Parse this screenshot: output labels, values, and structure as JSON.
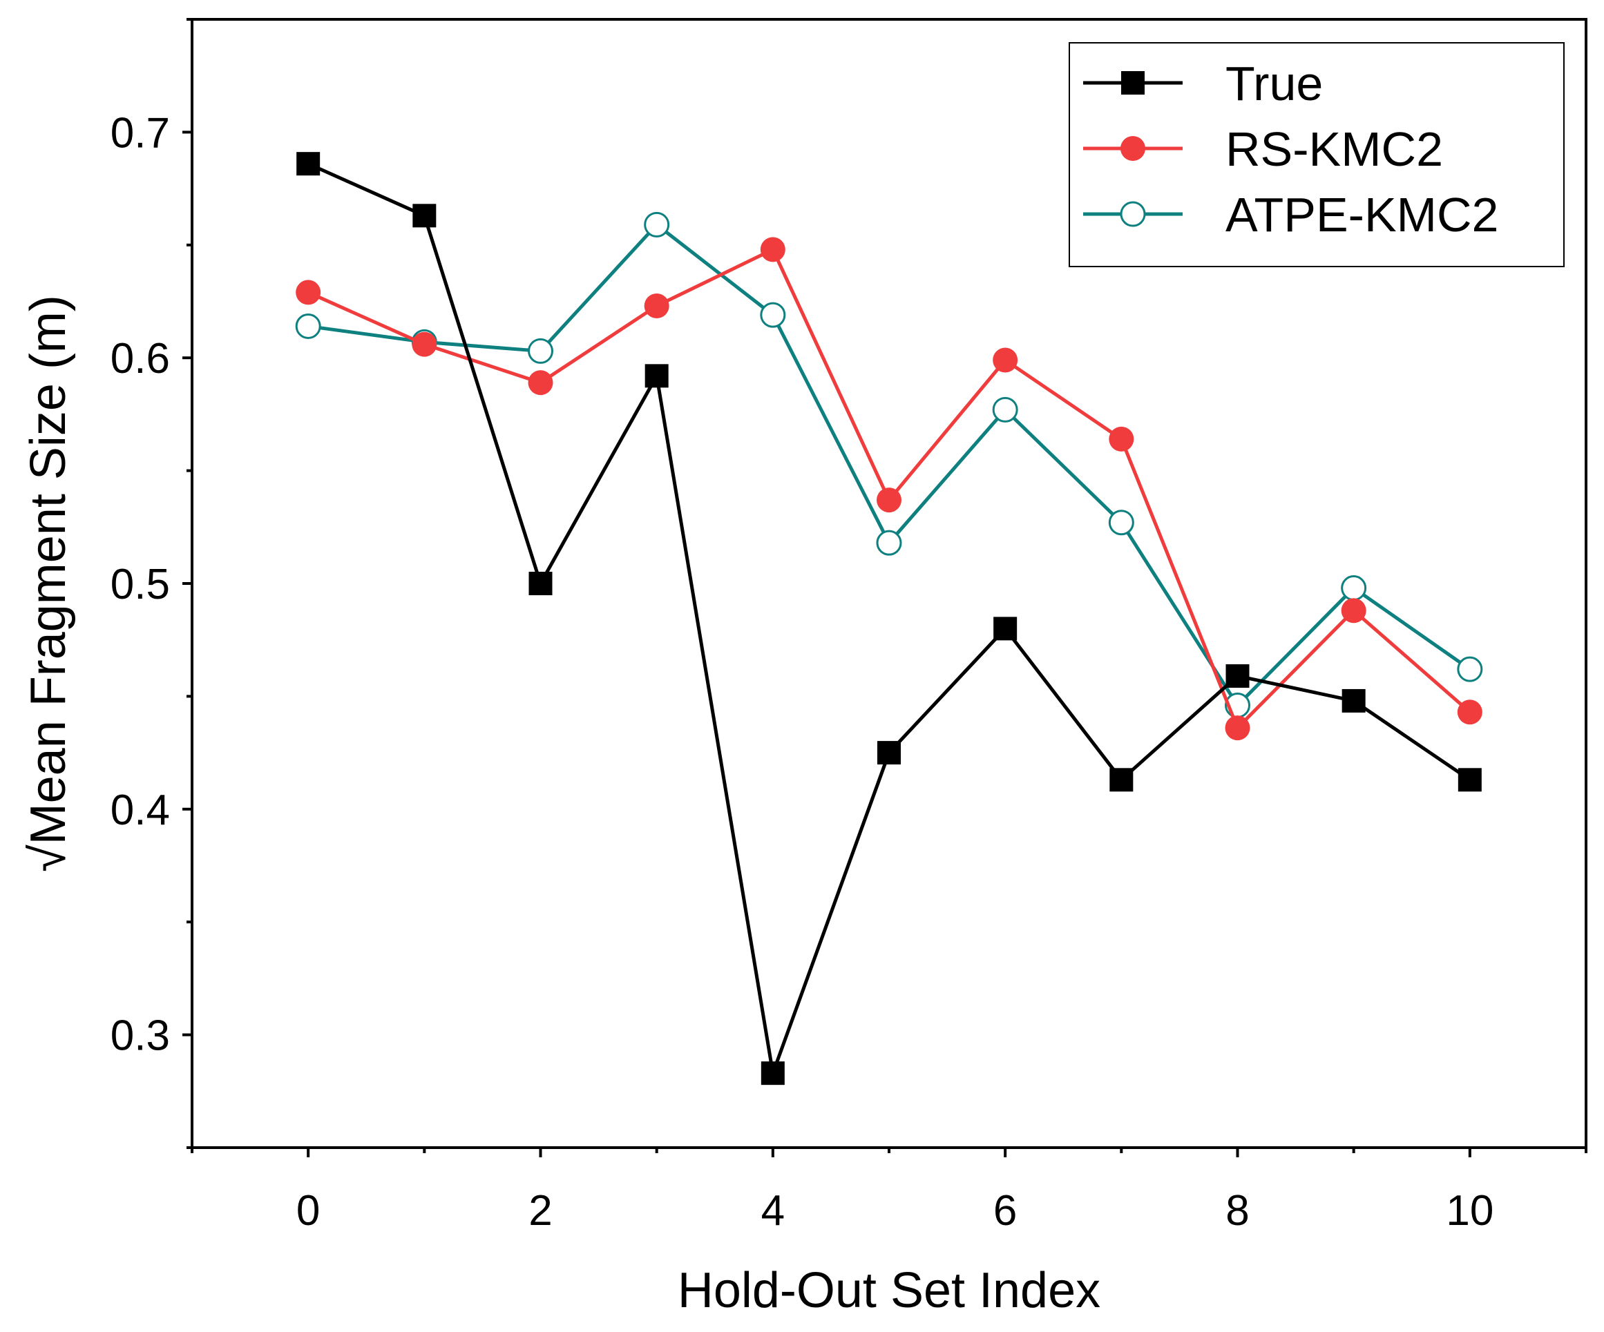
{
  "chart_data": {
    "type": "line",
    "title": "",
    "xlabel": "Hold-Out Set Index",
    "ylabel": "√Mean Fragment Size (m)",
    "xlim": [
      -1,
      11
    ],
    "ylim": [
      0.25,
      0.75
    ],
    "x": [
      0,
      1,
      2,
      3,
      4,
      5,
      6,
      7,
      8,
      9,
      10
    ],
    "xticks": [
      0,
      2,
      4,
      6,
      8,
      10
    ],
    "xtick_labels": [
      "0",
      "2",
      "4",
      "6",
      "8",
      "10"
    ],
    "yticks": [
      0.3,
      0.4,
      0.5,
      0.6,
      0.7
    ],
    "ytick_labels": [
      "0.3",
      "0.4",
      "0.5",
      "0.6",
      "0.7"
    ],
    "legend_position": "top-right",
    "series": [
      {
        "name": "True",
        "color": "#000000",
        "marker": "square-filled",
        "values": [
          0.686,
          0.663,
          0.5,
          0.592,
          0.283,
          0.425,
          0.48,
          0.413,
          0.459,
          0.448,
          0.413
        ]
      },
      {
        "name": "RS-KMC2",
        "color": "#f03c3c",
        "marker": "circle-filled",
        "values": [
          0.629,
          0.606,
          0.589,
          0.623,
          0.648,
          0.537,
          0.599,
          0.564,
          0.436,
          0.488,
          0.443
        ]
      },
      {
        "name": "ATPE-KMC2",
        "color": "#0e8080",
        "marker": "circle-open",
        "values": [
          0.614,
          0.607,
          0.603,
          0.659,
          0.619,
          0.518,
          0.577,
          0.527,
          0.446,
          0.498,
          0.462
        ]
      }
    ]
  }
}
